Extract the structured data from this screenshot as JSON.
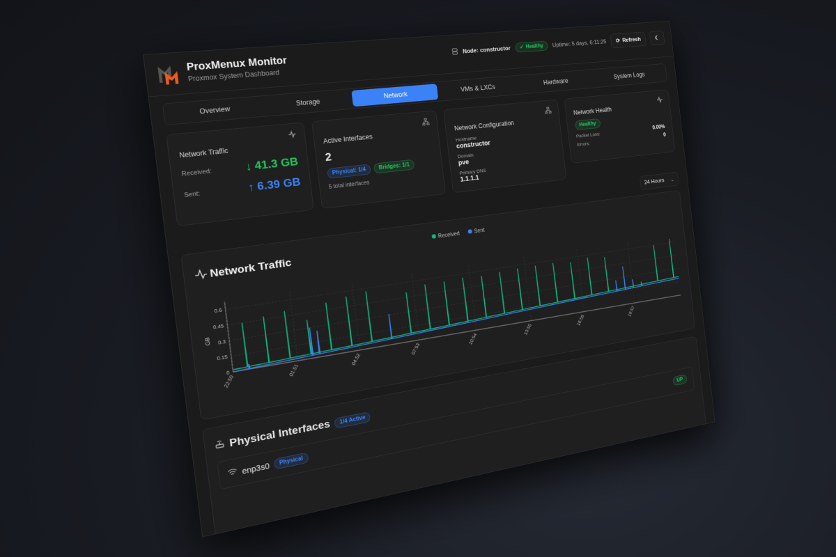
{
  "header": {
    "title": "ProxMenux Monitor",
    "subtitle": "Proxmox System Dashboard",
    "node": "Node: constructor",
    "status": "Healthy",
    "uptime": "Uptime: 5 days, 6:11:25",
    "refresh_label": "Refresh",
    "logo_colors": {
      "back": "#555555",
      "front": "#f05a1a"
    }
  },
  "tabs": [
    {
      "label": "Overview",
      "active": false
    },
    {
      "label": "Storage",
      "active": false
    },
    {
      "label": "Network",
      "active": true
    },
    {
      "label": "VMs & LXCs",
      "active": false
    },
    {
      "label": "Hardware",
      "active": false
    },
    {
      "label": "System Logs",
      "active": false
    }
  ],
  "cards": {
    "traffic": {
      "title": "Network Traffic",
      "received_label": "Received:",
      "received_value": "↓ 41.3 GB",
      "sent_label": "Sent:",
      "sent_value": "↑ 6.39 GB"
    },
    "interfaces": {
      "title": "Active Interfaces",
      "count": "2",
      "physical_badge": "Physical: 1/4",
      "bridges_badge": "Bridges: 1/1",
      "total": "5 total interfaces"
    },
    "config": {
      "title": "Network Configuration",
      "hostname_label": "Hostname",
      "hostname": "constructor",
      "domain_label": "Domain",
      "domain": "pve",
      "dns_label": "Primary DNS",
      "dns": "1.1.1.1"
    },
    "health": {
      "title": "Network Health",
      "status": "Healthy",
      "packet_loss_label": "Packet Loss:",
      "packet_loss": "0.00%",
      "errors_label": "Errors:",
      "errors": "0"
    }
  },
  "time_range": "24 Hours",
  "colors": {
    "accent": "#3b82f6",
    "received": "#10b981",
    "sent": "#3b82f6",
    "healthy": "#22c55e"
  },
  "chart_data": {
    "type": "line",
    "title": "Network Traffic",
    "ylabel": "GB",
    "ylim": [
      0,
      0.65
    ],
    "yticks": [
      "0",
      "0.15",
      "0.3",
      "0.45",
      "0.6"
    ],
    "xticks": [
      "22:50",
      "01:51",
      "04:52",
      "07:53",
      "10:54",
      "13:55",
      "16:56",
      "19:57"
    ],
    "x_start": "22:50",
    "x_end": "22:50",
    "grid": true,
    "legend": "top-center",
    "series": [
      {
        "name": "Received",
        "baseline": [
          {
            "t": "22:50",
            "v": 0.02
          },
          {
            "t": "04:52",
            "v": 0.06
          },
          {
            "t": "10:54",
            "v": 0.11
          },
          {
            "t": "16:56",
            "v": 0.16
          },
          {
            "t": "22:50",
            "v": 0.21
          }
        ],
        "spikes": [
          {
            "t": "23:30",
            "v": 0.45
          },
          {
            "t": "00:30",
            "v": 0.48
          },
          {
            "t": "01:30",
            "v": 0.5
          },
          {
            "t": "02:30",
            "v": 0.38
          },
          {
            "t": "03:30",
            "v": 0.52
          },
          {
            "t": "04:30",
            "v": 0.55
          },
          {
            "t": "05:30",
            "v": 0.57
          },
          {
            "t": "07:30",
            "v": 0.5
          },
          {
            "t": "08:30",
            "v": 0.55
          },
          {
            "t": "09:30",
            "v": 0.55
          },
          {
            "t": "10:30",
            "v": 0.56
          },
          {
            "t": "11:30",
            "v": 0.55
          },
          {
            "t": "12:30",
            "v": 0.56
          },
          {
            "t": "13:30",
            "v": 0.57
          },
          {
            "t": "14:30",
            "v": 0.57
          },
          {
            "t": "15:30",
            "v": 0.57
          },
          {
            "t": "16:30",
            "v": 0.55
          },
          {
            "t": "17:30",
            "v": 0.57
          },
          {
            "t": "18:30",
            "v": 0.55
          },
          {
            "t": "21:30",
            "v": 0.6
          },
          {
            "t": "22:30",
            "v": 0.64
          }
        ]
      },
      {
        "name": "Sent",
        "baseline": [
          {
            "t": "22:50",
            "v": 0.0
          },
          {
            "t": "04:52",
            "v": 0.045
          },
          {
            "t": "10:54",
            "v": 0.095
          },
          {
            "t": "16:56",
            "v": 0.145
          },
          {
            "t": "22:50",
            "v": 0.19
          }
        ],
        "spikes": [
          {
            "t": "23:35",
            "v": 0.05
          },
          {
            "t": "02:35",
            "v": 0.3
          },
          {
            "t": "02:55",
            "v": 0.26
          },
          {
            "t": "06:30",
            "v": 0.31
          },
          {
            "t": "19:00",
            "v": 0.28
          },
          {
            "t": "19:30",
            "v": 0.42
          },
          {
            "t": "20:00",
            "v": 0.26
          },
          {
            "t": "20:30",
            "v": 0.22
          }
        ]
      }
    ]
  },
  "physical": {
    "title": "Physical Interfaces",
    "active_badge": "1/4 Active",
    "interfaces": [
      {
        "name": "enp3s0",
        "type": "Physical",
        "status": "UP"
      }
    ]
  }
}
